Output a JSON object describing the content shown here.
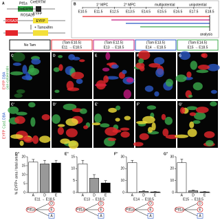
{
  "panel_a": {
    "label": "A",
    "allele1": "Ptf1a",
    "allele1_sup": "CreERTM",
    "cre_box": "CreERTM",
    "allele2": "ROSA26",
    "allele2_sup": "EYFP",
    "treatment": "+ Tamoxifen",
    "rosa_box": "ROSA26",
    "eyfp_box": "EYFP"
  },
  "panel_b": {
    "label": "B",
    "phase1": "1° MPC",
    "phase2": "2° MPC",
    "phase3": "multipotential",
    "phase4": "unipotential",
    "stages": [
      "E10.5",
      "E11.5",
      "E12.5",
      "E13.5",
      "E14.5",
      "E15.5",
      "E16.5",
      "E17.5",
      "E18.5"
    ],
    "analysis": "analysis"
  },
  "columns": [
    {
      "title": "No Tam",
      "color": "#000000"
    },
    {
      "title": "(Tam E10.5)",
      "subtitle": "E11 → E18.5",
      "color": "#e3262b"
    },
    {
      "title": "(Tam E12.5)",
      "subtitle": "E13 → E18.5",
      "color": "#c2187f"
    },
    {
      "title": "(Tam E13.5)",
      "subtitle": "E14 → E18.5",
      "color": "#2a57c4"
    },
    {
      "title": "(Tam E14.5)",
      "subtitle": "E15 → E18.5",
      "color": "#3aa84a"
    }
  ],
  "rows": [
    {
      "labels": [
        "EYFP",
        "DBA",
        "pan-cytokeratin"
      ],
      "panels": [
        "C",
        "D",
        "E",
        "F",
        "G"
      ]
    },
    {
      "labels": [
        "EYFP",
        "Cpa1",
        "DBA"
      ],
      "panels": [
        "C'",
        "D'",
        "E'",
        "F'",
        "G'"
      ]
    }
  ],
  "chart_data": [
    {
      "type": "bar",
      "panel": "D''",
      "ylabel": "% EYFP+ area / total area",
      "categories": [
        "A",
        "D",
        "E"
      ],
      "values": [
        17,
        16,
        16.5
      ],
      "errors": [
        1.5,
        2,
        1.5
      ],
      "colors": [
        "#ffffff",
        "#999999",
        "#000000"
      ],
      "ylim": [
        0,
        20
      ],
      "yticks": [
        0,
        5,
        10,
        15,
        20
      ],
      "xlabel": "E11 → E18.5"
    },
    {
      "type": "bar",
      "panel": "E''",
      "categories": [
        "A",
        "D",
        "E"
      ],
      "values": [
        12,
        6,
        4
      ],
      "errors": [
        1.5,
        1.5,
        1
      ],
      "colors": [
        "#ffffff",
        "#999999",
        "#000000"
      ],
      "ylim": [
        0,
        15
      ],
      "yticks": [
        0,
        5,
        10,
        15
      ],
      "xlabel": "E13 → E18.5"
    },
    {
      "type": "bar",
      "panel": "F''",
      "categories": [
        "A",
        "D",
        "E"
      ],
      "values": [
        25,
        1,
        0.5
      ],
      "errors": [
        2,
        0.5,
        0.3
      ],
      "colors": [
        "#ffffff",
        "#999999",
        "#000000"
      ],
      "ylim": [
        0,
        30
      ],
      "yticks": [
        0,
        10,
        20,
        30
      ],
      "xlabel": "E14 → E18.5"
    },
    {
      "type": "bar",
      "panel": "G''",
      "categories": [
        "A",
        "D",
        "E"
      ],
      "values": [
        25,
        1.5,
        0.5
      ],
      "errors": [
        3,
        0.5,
        0.3
      ],
      "colors": [
        "#ffffff",
        "#999999",
        "#000000"
      ],
      "ylim": [
        0,
        30
      ],
      "yticks": [
        0,
        10,
        20,
        30
      ],
      "xlabel": "E15 → E18.5"
    }
  ],
  "lineage_diagrams": [
    {
      "source": "Ptf1a",
      "targets": [
        "D",
        "E",
        "A"
      ]
    },
    {
      "source": "Ptf1a",
      "targets": [
        "D",
        "E",
        "A"
      ]
    },
    {
      "source": "Ptf1a",
      "targets": [
        "D",
        "E",
        "A"
      ]
    },
    {
      "source": "Ptf1a",
      "targets": [
        "D",
        "E",
        "A"
      ]
    }
  ]
}
